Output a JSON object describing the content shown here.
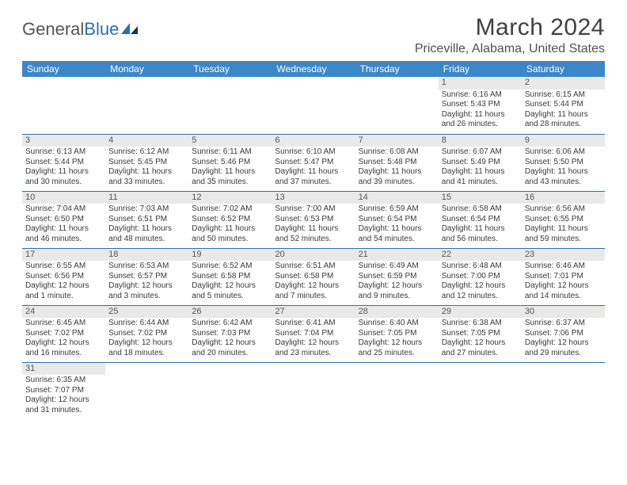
{
  "logo": {
    "part1": "General",
    "part2": "Blue"
  },
  "title": "March 2024",
  "location": "Priceville, Alabama, United States",
  "colors": {
    "header_bg": "#3b87c8",
    "header_text": "#ffffff",
    "rule": "#2f6fa8",
    "daynum_bg": "#e9e9e9",
    "text": "#3a3a3a"
  },
  "weekdays": [
    "Sunday",
    "Monday",
    "Tuesday",
    "Wednesday",
    "Thursday",
    "Friday",
    "Saturday"
  ],
  "days": [
    {
      "n": 1,
      "sunrise": "6:16 AM",
      "sunset": "5:43 PM",
      "daylight": "11 hours and 26 minutes."
    },
    {
      "n": 2,
      "sunrise": "6:15 AM",
      "sunset": "5:44 PM",
      "daylight": "11 hours and 28 minutes."
    },
    {
      "n": 3,
      "sunrise": "6:13 AM",
      "sunset": "5:44 PM",
      "daylight": "11 hours and 30 minutes."
    },
    {
      "n": 4,
      "sunrise": "6:12 AM",
      "sunset": "5:45 PM",
      "daylight": "11 hours and 33 minutes."
    },
    {
      "n": 5,
      "sunrise": "6:11 AM",
      "sunset": "5:46 PM",
      "daylight": "11 hours and 35 minutes."
    },
    {
      "n": 6,
      "sunrise": "6:10 AM",
      "sunset": "5:47 PM",
      "daylight": "11 hours and 37 minutes."
    },
    {
      "n": 7,
      "sunrise": "6:08 AM",
      "sunset": "5:48 PM",
      "daylight": "11 hours and 39 minutes."
    },
    {
      "n": 8,
      "sunrise": "6:07 AM",
      "sunset": "5:49 PM",
      "daylight": "11 hours and 41 minutes."
    },
    {
      "n": 9,
      "sunrise": "6:06 AM",
      "sunset": "5:50 PM",
      "daylight": "11 hours and 43 minutes."
    },
    {
      "n": 10,
      "sunrise": "7:04 AM",
      "sunset": "6:50 PM",
      "daylight": "11 hours and 46 minutes."
    },
    {
      "n": 11,
      "sunrise": "7:03 AM",
      "sunset": "6:51 PM",
      "daylight": "11 hours and 48 minutes."
    },
    {
      "n": 12,
      "sunrise": "7:02 AM",
      "sunset": "6:52 PM",
      "daylight": "11 hours and 50 minutes."
    },
    {
      "n": 13,
      "sunrise": "7:00 AM",
      "sunset": "6:53 PM",
      "daylight": "11 hours and 52 minutes."
    },
    {
      "n": 14,
      "sunrise": "6:59 AM",
      "sunset": "6:54 PM",
      "daylight": "11 hours and 54 minutes."
    },
    {
      "n": 15,
      "sunrise": "6:58 AM",
      "sunset": "6:54 PM",
      "daylight": "11 hours and 56 minutes."
    },
    {
      "n": 16,
      "sunrise": "6:56 AM",
      "sunset": "6:55 PM",
      "daylight": "11 hours and 59 minutes."
    },
    {
      "n": 17,
      "sunrise": "6:55 AM",
      "sunset": "6:56 PM",
      "daylight": "12 hours and 1 minute."
    },
    {
      "n": 18,
      "sunrise": "6:53 AM",
      "sunset": "6:57 PM",
      "daylight": "12 hours and 3 minutes."
    },
    {
      "n": 19,
      "sunrise": "6:52 AM",
      "sunset": "6:58 PM",
      "daylight": "12 hours and 5 minutes."
    },
    {
      "n": 20,
      "sunrise": "6:51 AM",
      "sunset": "6:58 PM",
      "daylight": "12 hours and 7 minutes."
    },
    {
      "n": 21,
      "sunrise": "6:49 AM",
      "sunset": "6:59 PM",
      "daylight": "12 hours and 9 minutes."
    },
    {
      "n": 22,
      "sunrise": "6:48 AM",
      "sunset": "7:00 PM",
      "daylight": "12 hours and 12 minutes."
    },
    {
      "n": 23,
      "sunrise": "6:46 AM",
      "sunset": "7:01 PM",
      "daylight": "12 hours and 14 minutes."
    },
    {
      "n": 24,
      "sunrise": "6:45 AM",
      "sunset": "7:02 PM",
      "daylight": "12 hours and 16 minutes."
    },
    {
      "n": 25,
      "sunrise": "6:44 AM",
      "sunset": "7:02 PM",
      "daylight": "12 hours and 18 minutes."
    },
    {
      "n": 26,
      "sunrise": "6:42 AM",
      "sunset": "7:03 PM",
      "daylight": "12 hours and 20 minutes."
    },
    {
      "n": 27,
      "sunrise": "6:41 AM",
      "sunset": "7:04 PM",
      "daylight": "12 hours and 23 minutes."
    },
    {
      "n": 28,
      "sunrise": "6:40 AM",
      "sunset": "7:05 PM",
      "daylight": "12 hours and 25 minutes."
    },
    {
      "n": 29,
      "sunrise": "6:38 AM",
      "sunset": "7:05 PM",
      "daylight": "12 hours and 27 minutes."
    },
    {
      "n": 30,
      "sunrise": "6:37 AM",
      "sunset": "7:06 PM",
      "daylight": "12 hours and 29 minutes."
    },
    {
      "n": 31,
      "sunrise": "6:35 AM",
      "sunset": "7:07 PM",
      "daylight": "12 hours and 31 minutes."
    }
  ],
  "labels": {
    "sunrise": "Sunrise: ",
    "sunset": "Sunset: ",
    "daylight": "Daylight: "
  },
  "layout": {
    "first_weekday_index": 5,
    "rows": 6,
    "cols": 7
  }
}
